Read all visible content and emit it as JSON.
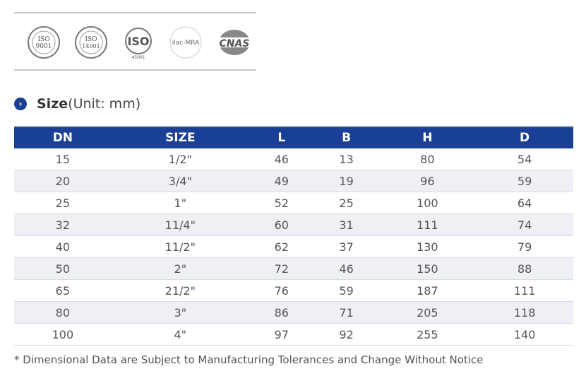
{
  "certifications": [
    {
      "name": "iso-9001-logo",
      "text": "ISO 9001"
    },
    {
      "name": "iso-14001-logo",
      "text": "ISO 14001"
    },
    {
      "name": "iso-45001-logo",
      "text": "ISO 45001"
    },
    {
      "name": "ilac-mra-logo",
      "text": "ilac-MRA"
    },
    {
      "name": "cnas-logo",
      "text": "CNAS"
    }
  ],
  "section": {
    "title_bold": "Size",
    "title_unit": "(Unit: mm)",
    "icon": "chevron-right-circle-icon",
    "accent": "#1a3f96"
  },
  "table": {
    "headers": [
      "DN",
      "SIZE",
      "L",
      "B",
      "H",
      "D"
    ],
    "rows": [
      [
        "15",
        "1/2\"",
        "46",
        "13",
        "80",
        "54"
      ],
      [
        "20",
        "3/4\"",
        "49",
        "19",
        "96",
        "59"
      ],
      [
        "25",
        "1\"",
        "52",
        "25",
        "100",
        "64"
      ],
      [
        "32",
        "11/4\"",
        "60",
        "31",
        "111",
        "74"
      ],
      [
        "40",
        "11/2\"",
        "62",
        "37",
        "130",
        "79"
      ],
      [
        "50",
        "2\"",
        "72",
        "46",
        "150",
        "88"
      ],
      [
        "65",
        "21/2\"",
        "76",
        "59",
        "187",
        "111"
      ],
      [
        "80",
        "3\"",
        "86",
        "71",
        "205",
        "118"
      ],
      [
        "100",
        "4\"",
        "97",
        "92",
        "255",
        "140"
      ]
    ]
  },
  "note": "* Dimensional Data are Subject to Manufacturing Tolerances and Change Without Notice"
}
